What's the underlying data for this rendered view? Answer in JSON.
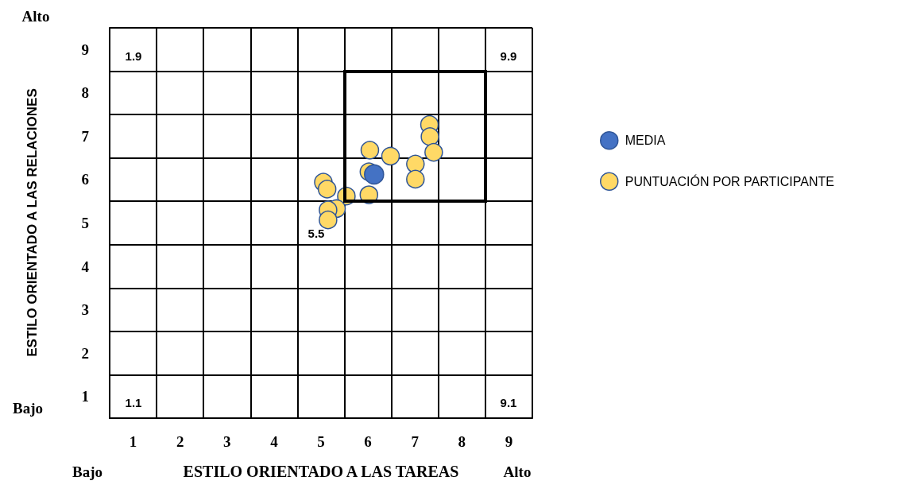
{
  "chart_data": {
    "type": "scatter",
    "xlabel": "ESTILO ORIENTADO A LAS TAREAS",
    "ylabel": "ESTILO ORIENTADO A LAS RELACIONES",
    "xlim": [
      0.5,
      9.5
    ],
    "ylim": [
      0.5,
      9.5
    ],
    "xticks": [
      {
        "value": 0.5,
        "label": null
      },
      1,
      {
        "value": 1.5,
        "label": null
      },
      2,
      {
        "value": 2.5,
        "label": null
      },
      3,
      {
        "value": 3.5,
        "label": null
      },
      4,
      {
        "value": 4.5,
        "label": null
      },
      5,
      {
        "value": 5.5,
        "label": null
      },
      6,
      {
        "value": 6.5,
        "label": null
      },
      7,
      {
        "value": 7.5,
        "label": null
      },
      8,
      {
        "value": 8.5,
        "label": null
      },
      9,
      {
        "value": 9.5,
        "label": null
      }
    ],
    "yticks": [
      {
        "value": 0.5,
        "label": null
      },
      1,
      {
        "value": 1.5,
        "label": null
      },
      2,
      {
        "value": 2.5,
        "label": null
      },
      3,
      {
        "value": 3.5,
        "label": null
      },
      4,
      {
        "value": 4.5,
        "label": null
      },
      5,
      {
        "value": 5.5,
        "label": null
      },
      6,
      {
        "value": 6.5,
        "label": null
      },
      7,
      {
        "value": 7.5,
        "label": null
      },
      8,
      {
        "value": 8.5,
        "label": null
      },
      9,
      {
        "value": 9.5,
        "label": null
      }
    ],
    "grid": true,
    "legend": "right",
    "marker": "circle",
    "series": [
      {
        "name": "MEDIA",
        "color": "#4472c4",
        "x": [
          6.13
        ],
        "values": [
          6.12
        ]
      },
      {
        "name": "PUNTUACIÓN POR PARTICIPANTE",
        "color": "#ffd966",
        "x": [
          7.31,
          7.32,
          7.4,
          6.04,
          6.48,
          7.01,
          7.01,
          6.02,
          6.02,
          5.54,
          5.05,
          5.13,
          5.33,
          5.15,
          5.15
        ],
        "values": [
          7.27,
          6.99,
          6.63,
          6.68,
          6.54,
          6.36,
          6.01,
          6.18,
          5.65,
          5.62,
          5.94,
          5.78,
          5.33,
          5.3,
          5.07
        ]
      }
    ],
    "annotations": [
      "Alto",
      "Bajo",
      "Bajo",
      "Alto",
      "1.9",
      "9.9",
      "1.1",
      "9.1",
      "5.5"
    ]
  }
}
